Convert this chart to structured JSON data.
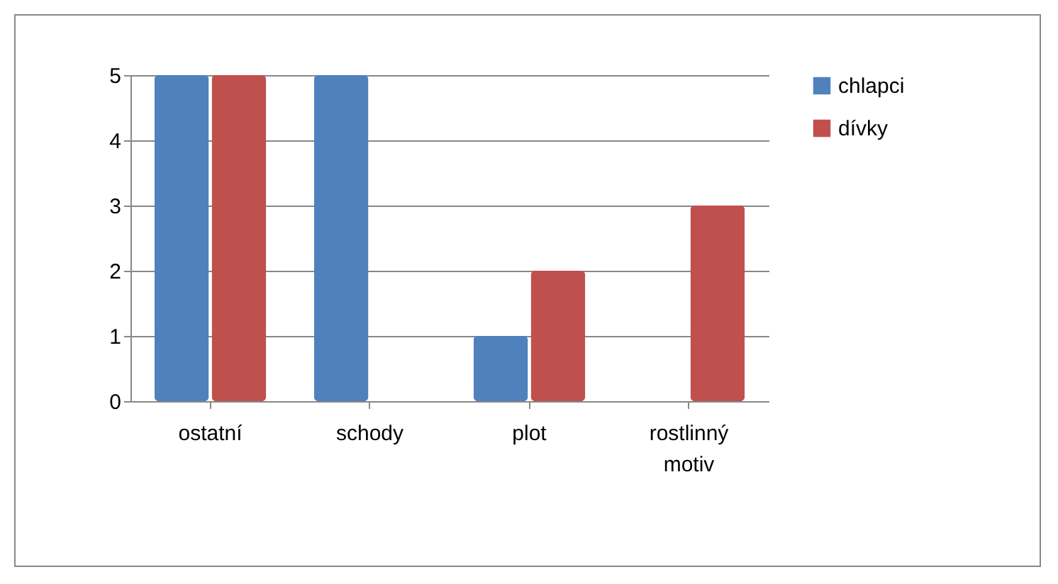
{
  "chart_data": {
    "type": "bar",
    "categories": [
      "ostatní",
      "schody",
      "plot",
      "rostlinný motiv"
    ],
    "series": [
      {
        "name": "chlapci",
        "color": "#4f81bd",
        "values": [
          5,
          5,
          1,
          0
        ]
      },
      {
        "name": "dívky",
        "color": "#c0504d",
        "values": [
          5,
          0,
          2,
          3
        ]
      }
    ],
    "ylim": [
      0,
      5
    ],
    "yticks": [
      0,
      1,
      2,
      3,
      4,
      5
    ],
    "grid": "y",
    "legend": "right"
  }
}
